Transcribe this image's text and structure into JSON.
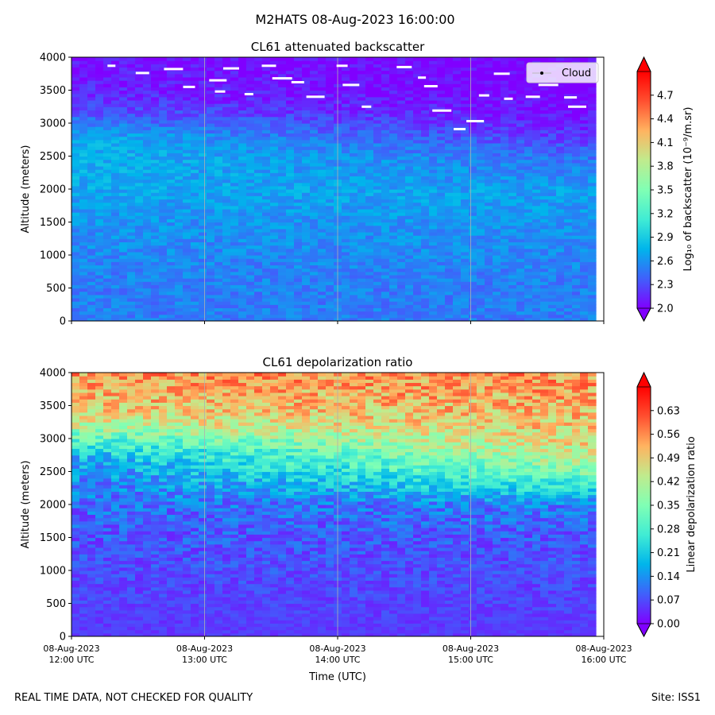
{
  "figure": {
    "suptitle": "M2HATS 08-Aug-2023 16:00:00",
    "footer_left": "REAL TIME DATA, NOT CHECKED FOR QUALITY",
    "footer_right": "Site: ISS1"
  },
  "colors": {
    "colormap": "rainbow",
    "stops": [
      "#8000ff",
      "#4060fb",
      "#00b5eb",
      "#40ecd4",
      "#80ffb4",
      "#c0eb8d",
      "#ffb360",
      "#ff5030",
      "#ff0000"
    ],
    "cloud_marker": "#ffffff",
    "gridline": "#b0b0b0"
  },
  "chart_data": [
    {
      "type": "heatmap",
      "title": "CL61 attenuated backscatter",
      "ylabel": "Altitude (meters)",
      "xlabel": "",
      "xlim": [
        "2023-08-08T12:00:00Z",
        "2023-08-08T16:00:00Z"
      ],
      "ylim": [
        0,
        4000
      ],
      "x_ticks": [
        "2023-08-08T12:00:00Z",
        "2023-08-08T13:00:00Z",
        "2023-08-08T14:00:00Z",
        "2023-08-08T15:00:00Z",
        "2023-08-08T16:00:00Z"
      ],
      "x_tick_labels": [],
      "y_ticks": [
        0,
        500,
        1000,
        1500,
        2000,
        2500,
        3000,
        3500,
        4000
      ],
      "grid": "vertical",
      "legend": {
        "entries": [
          "Cloud"
        ],
        "position": "top-right"
      },
      "colorbar": {
        "label": "Log₁₀ of backscatter (10⁻⁹/m.sr)",
        "range": [
          2.0,
          5.0
        ],
        "ticks": [
          2.0,
          2.3,
          2.6,
          2.9,
          3.2,
          3.5,
          3.8,
          4.1,
          4.4,
          4.7
        ],
        "extend": "both"
      },
      "profile": {
        "description": "typical values per altitude at start and end of period",
        "altitudes": [
          0,
          500,
          1000,
          1500,
          2000,
          2500,
          2800,
          3000,
          3200,
          3500,
          4000
        ],
        "value_start": [
          2.5,
          2.5,
          2.55,
          2.6,
          2.7,
          2.75,
          2.7,
          2.5,
          2.3,
          2.15,
          2.05
        ],
        "value_end": [
          2.5,
          2.5,
          2.55,
          2.6,
          2.65,
          2.45,
          2.2,
          2.1,
          2.05,
          2.0,
          2.0
        ]
      },
      "cloud_points": [
        {
          "t": "12:18",
          "alt": 3870
        },
        {
          "t": "12:32",
          "alt": 3760
        },
        {
          "t": "12:46",
          "alt": 3820
        },
        {
          "t": "12:53",
          "alt": 3550
        },
        {
          "t": "13:06",
          "alt": 3650
        },
        {
          "t": "13:07",
          "alt": 3480
        },
        {
          "t": "13:12",
          "alt": 3830
        },
        {
          "t": "13:20",
          "alt": 3440
        },
        {
          "t": "13:29",
          "alt": 3870
        },
        {
          "t": "13:35",
          "alt": 3680
        },
        {
          "t": "13:42",
          "alt": 3620
        },
        {
          "t": "13:50",
          "alt": 3400
        },
        {
          "t": "14:02",
          "alt": 3870
        },
        {
          "t": "14:06",
          "alt": 3580
        },
        {
          "t": "14:13",
          "alt": 3250
        },
        {
          "t": "14:30",
          "alt": 3850
        },
        {
          "t": "14:38",
          "alt": 3690
        },
        {
          "t": "14:42",
          "alt": 3560
        },
        {
          "t": "14:47",
          "alt": 3190
        },
        {
          "t": "14:55",
          "alt": 2910
        },
        {
          "t": "15:02",
          "alt": 3030
        },
        {
          "t": "15:06",
          "alt": 3420
        },
        {
          "t": "15:14",
          "alt": 3750
        },
        {
          "t": "15:17",
          "alt": 3370
        },
        {
          "t": "15:28",
          "alt": 3400
        },
        {
          "t": "15:35",
          "alt": 3580
        },
        {
          "t": "15:45",
          "alt": 3390
        },
        {
          "t": "15:48",
          "alt": 3250
        }
      ]
    },
    {
      "type": "heatmap",
      "title": "CL61 depolarization ratio",
      "ylabel": "Altitude (meters)",
      "xlabel": "Time (UTC)",
      "xlim": [
        "2023-08-08T12:00:00Z",
        "2023-08-08T16:00:00Z"
      ],
      "ylim": [
        0,
        4000
      ],
      "x_ticks": [
        "2023-08-08T12:00:00Z",
        "2023-08-08T13:00:00Z",
        "2023-08-08T14:00:00Z",
        "2023-08-08T15:00:00Z",
        "2023-08-08T16:00:00Z"
      ],
      "x_tick_labels": [
        [
          "08-Aug-2023",
          "12:00 UTC"
        ],
        [
          "08-Aug-2023",
          "13:00 UTC"
        ],
        [
          "08-Aug-2023",
          "14:00 UTC"
        ],
        [
          "08-Aug-2023",
          "15:00 UTC"
        ],
        [
          "08-Aug-2023",
          "16:00 UTC"
        ]
      ],
      "y_ticks": [
        0,
        500,
        1000,
        1500,
        2000,
        2500,
        3000,
        3500,
        4000
      ],
      "grid": "vertical",
      "colorbar": {
        "label": "Linear depolarization ratio",
        "range": [
          0.0,
          0.7
        ],
        "ticks": [
          "0.00",
          "0.07",
          "0.14",
          "0.21",
          "0.28",
          "0.35",
          "0.42",
          "0.49",
          "0.56",
          "0.63"
        ],
        "extend": "both"
      },
      "profile": {
        "description": "typical values per altitude at start and end of period",
        "altitudes": [
          0,
          500,
          1000,
          1500,
          2000,
          2500,
          2800,
          3000,
          3200,
          3500,
          4000
        ],
        "value_start": [
          0.05,
          0.06,
          0.07,
          0.08,
          0.1,
          0.14,
          0.2,
          0.3,
          0.42,
          0.5,
          0.55
        ],
        "value_end": [
          0.05,
          0.06,
          0.07,
          0.08,
          0.12,
          0.35,
          0.45,
          0.48,
          0.5,
          0.52,
          0.55
        ]
      }
    }
  ]
}
